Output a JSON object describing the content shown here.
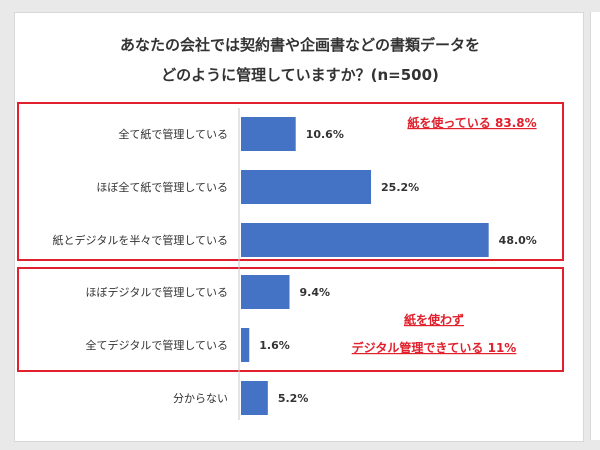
{
  "chart_data": {
    "type": "bar",
    "orientation": "horizontal",
    "title_lines": [
      "あなたの会社では契約書や企画書などの書類データを",
      "どのように管理していますか？(n=500)"
    ],
    "categories": [
      "全て紙で管理している",
      "ほぼ全て紙で管理している",
      "紙とデジタルを半々で管理している",
      "ほぼデジタルで管理している",
      "全てデジタルで管理している",
      "分からない"
    ],
    "values": [
      10.6,
      25.2,
      48.0,
      9.4,
      1.6,
      5.2
    ],
    "value_labels": [
      "10.6%",
      "25.2%",
      "48.0%",
      "9.4%",
      "1.6%",
      "5.2%"
    ],
    "xlim": [
      0,
      50
    ],
    "grid": false,
    "legend": "none",
    "colors": {
      "bar": "#4472c4",
      "group_box": "#e0202c",
      "note": "#e0202c"
    },
    "groups": [
      {
        "categories": [
          0,
          1,
          2
        ],
        "annotation_lines": [
          "紙を使っている 83.8%"
        ]
      },
      {
        "categories": [
          3,
          4
        ],
        "annotation_lines": [
          "紙を使わず",
          "デジタル管理できている 11%"
        ]
      }
    ]
  }
}
